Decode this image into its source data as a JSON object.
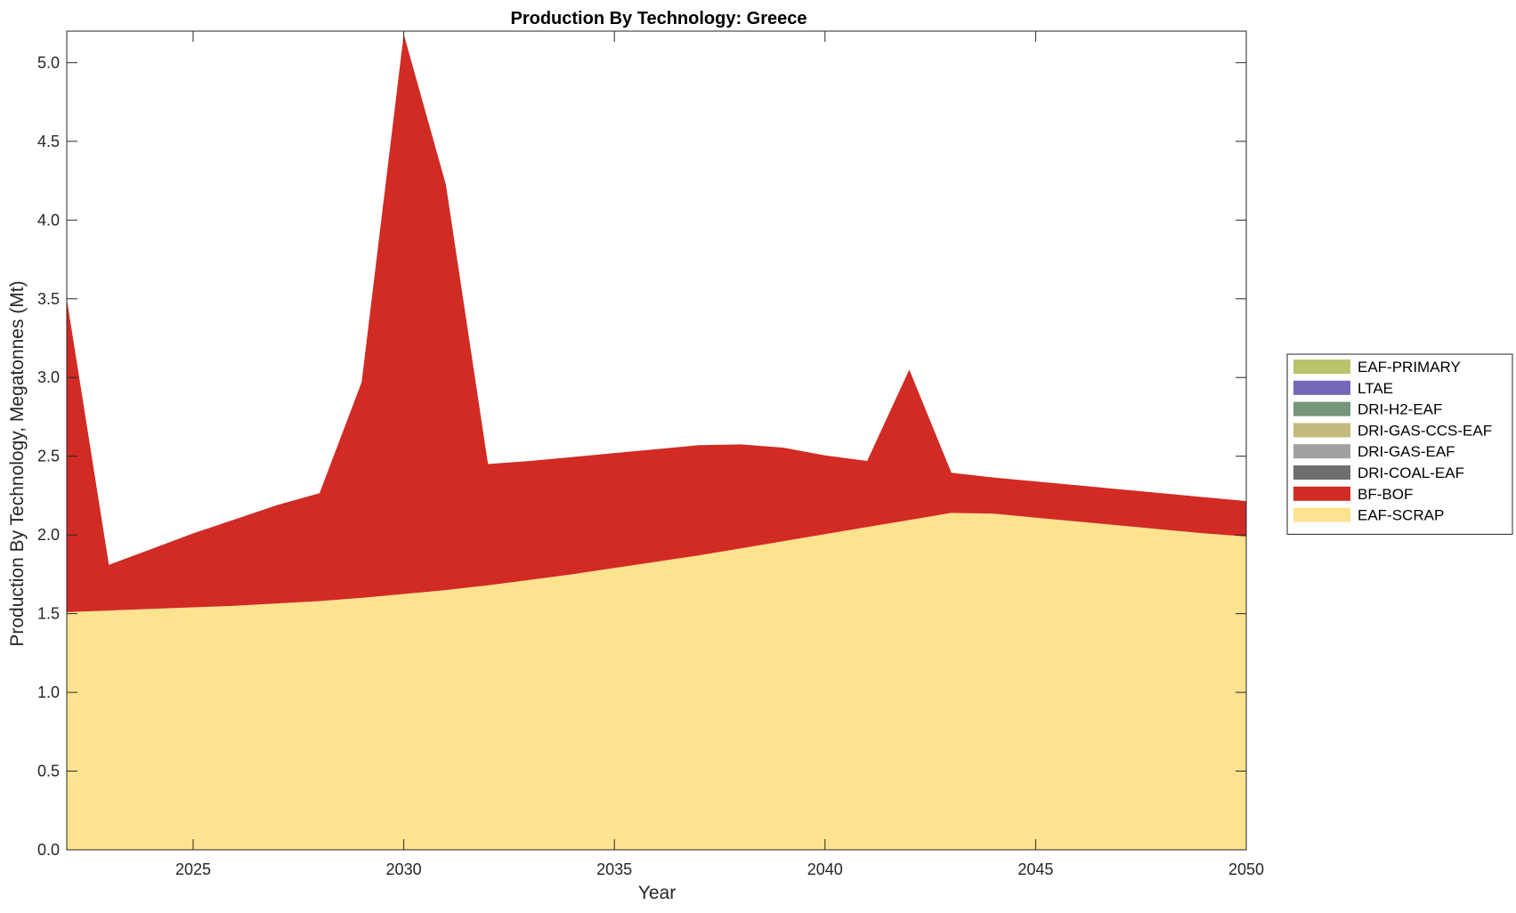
{
  "chart_data": {
    "type": "area",
    "stacked": true,
    "title": "Production By Technology: Greece",
    "xlabel": "Year",
    "ylabel": "Production By Technology, Megatonnes (Mt)",
    "xlim": [
      2022,
      2050
    ],
    "ylim": [
      0,
      5.2
    ],
    "grid": false,
    "legend_position": "right",
    "x": [
      2022,
      2023,
      2024,
      2025,
      2026,
      2027,
      2028,
      2029,
      2030,
      2031,
      2032,
      2033,
      2034,
      2035,
      2036,
      2037,
      2038,
      2039,
      2040,
      2041,
      2042,
      2043,
      2044,
      2045,
      2046,
      2047,
      2048,
      2049,
      2050
    ],
    "x_ticks": [
      "2025",
      "2030",
      "2035",
      "2040",
      "2045",
      "2050"
    ],
    "x_tick_values": [
      2025,
      2030,
      2035,
      2040,
      2045,
      2050
    ],
    "y_ticks": [
      "0.0",
      "0.5",
      "1.0",
      "1.5",
      "2.0",
      "2.5",
      "3.0",
      "3.5",
      "4.0",
      "4.5",
      "5.0"
    ],
    "y_tick_values": [
      0,
      0.5,
      1,
      1.5,
      2,
      2.5,
      3,
      3.5,
      4,
      4.5,
      5
    ],
    "series": [
      {
        "name": "EAF-SCRAP",
        "color": "#fde390",
        "values": [
          1.51,
          1.52,
          1.53,
          1.54,
          1.55,
          1.565,
          1.58,
          1.6,
          1.625,
          1.65,
          1.68,
          1.715,
          1.75,
          1.79,
          1.83,
          1.87,
          1.915,
          1.96,
          2.005,
          2.05,
          2.095,
          2.14,
          2.135,
          2.11,
          2.085,
          2.06,
          2.035,
          2.01,
          1.99
        ]
      },
      {
        "name": "BF-BOF",
        "color": "#d12b24",
        "values": [
          1.99,
          0.29,
          0.38,
          0.47,
          0.55,
          0.625,
          0.685,
          1.37,
          3.555,
          2.575,
          0.77,
          0.755,
          0.745,
          0.73,
          0.715,
          0.7,
          0.66,
          0.595,
          0.5,
          0.42,
          0.955,
          0.255,
          0.23,
          0.23,
          0.23,
          0.23,
          0.23,
          0.23,
          0.225
        ]
      },
      {
        "name": "DRI-COAL-EAF",
        "color": "#6e6e6e",
        "values": [
          0,
          0,
          0,
          0,
          0,
          0,
          0,
          0,
          0,
          0,
          0,
          0,
          0,
          0,
          0,
          0,
          0,
          0,
          0,
          0,
          0,
          0,
          0,
          0,
          0,
          0,
          0,
          0,
          0
        ]
      },
      {
        "name": "DRI-GAS-EAF",
        "color": "#a0a0a0",
        "values": [
          0,
          0,
          0,
          0,
          0,
          0,
          0,
          0,
          0,
          0,
          0,
          0,
          0,
          0,
          0,
          0,
          0,
          0,
          0,
          0,
          0,
          0,
          0,
          0,
          0,
          0,
          0,
          0,
          0
        ]
      },
      {
        "name": "DRI-GAS-CCS-EAF",
        "color": "#c4ba7d",
        "values": [
          0,
          0,
          0,
          0,
          0,
          0,
          0,
          0,
          0,
          0,
          0,
          0,
          0,
          0,
          0,
          0,
          0,
          0,
          0,
          0,
          0,
          0,
          0,
          0,
          0,
          0,
          0,
          0,
          0
        ]
      },
      {
        "name": "DRI-H2-EAF",
        "color": "#76967a",
        "values": [
          0,
          0,
          0,
          0,
          0,
          0,
          0,
          0,
          0,
          0,
          0,
          0,
          0,
          0,
          0,
          0,
          0,
          0,
          0,
          0,
          0,
          0,
          0,
          0,
          0,
          0,
          0,
          0,
          0
        ]
      },
      {
        "name": "LTAE",
        "color": "#7468b8",
        "values": [
          0,
          0,
          0,
          0,
          0,
          0,
          0,
          0,
          0,
          0,
          0,
          0,
          0,
          0,
          0,
          0,
          0,
          0,
          0,
          0,
          0,
          0,
          0,
          0,
          0,
          0,
          0,
          0,
          0
        ]
      },
      {
        "name": "EAF-PRIMARY",
        "color": "#b9c36b",
        "values": [
          0,
          0,
          0,
          0,
          0,
          0,
          0,
          0,
          0,
          0,
          0,
          0,
          0,
          0,
          0,
          0,
          0,
          0,
          0,
          0,
          0,
          0,
          0,
          0,
          0,
          0,
          0,
          0,
          0
        ]
      }
    ],
    "legend_order": [
      "EAF-PRIMARY",
      "LTAE",
      "DRI-H2-EAF",
      "DRI-GAS-CCS-EAF",
      "DRI-GAS-EAF",
      "DRI-COAL-EAF",
      "BF-BOF",
      "EAF-SCRAP"
    ]
  }
}
